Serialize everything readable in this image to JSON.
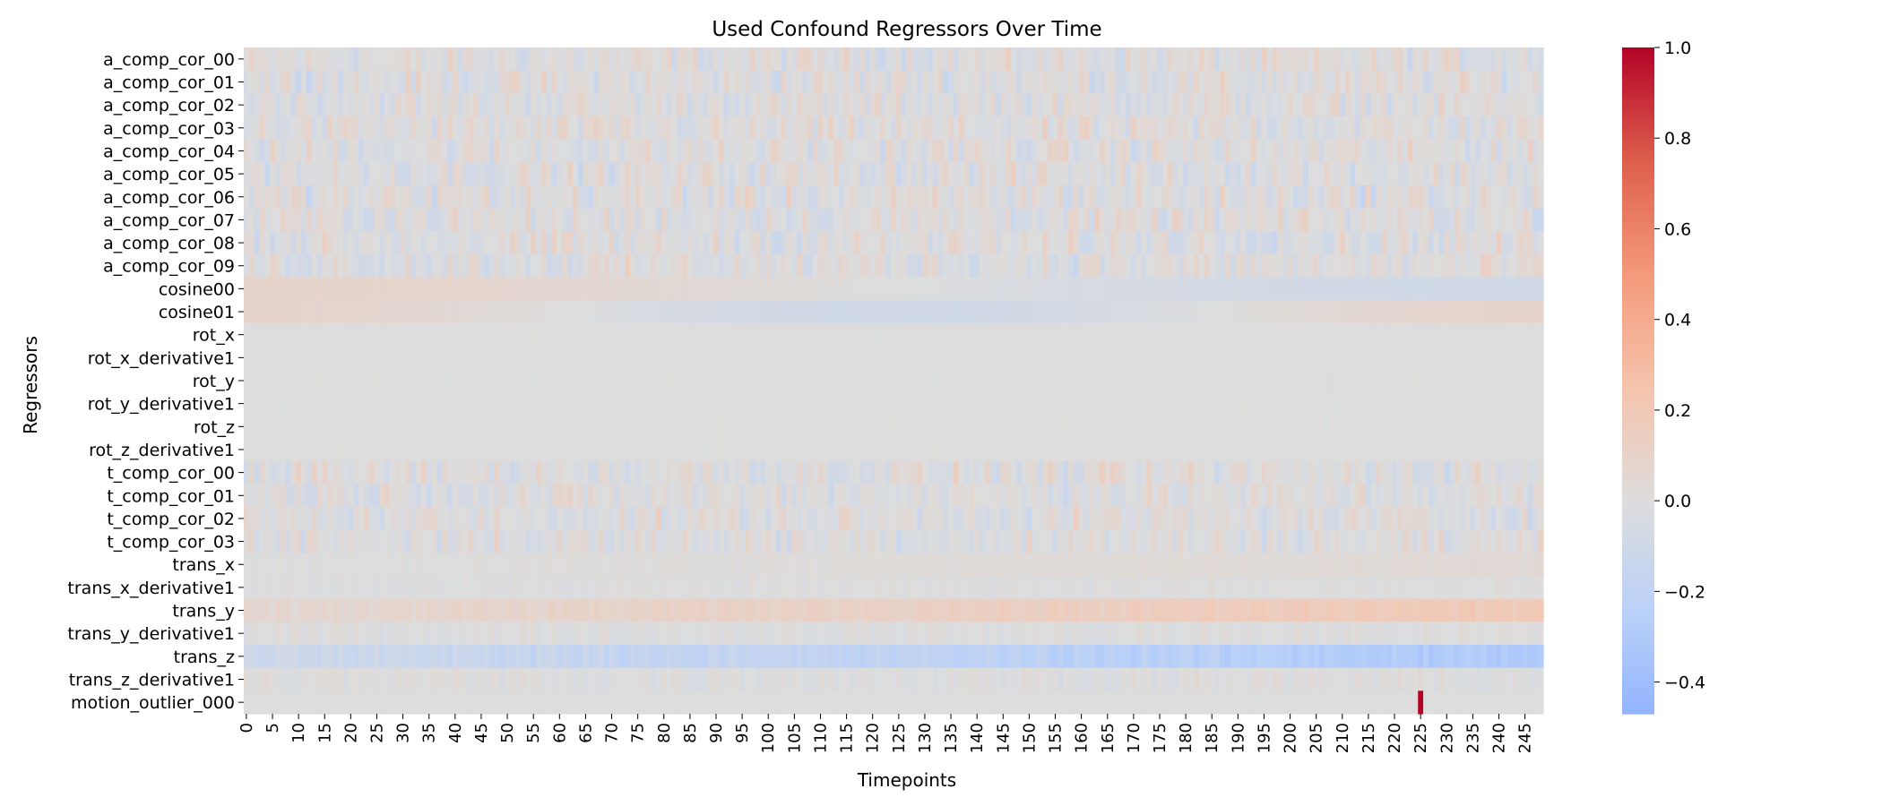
{
  "chart_data": {
    "type": "heatmap",
    "title": "Used Confound Regressors Over Time",
    "xlabel": "Timepoints",
    "ylabel": "Regressors",
    "n_timepoints": 249,
    "x_tick_step": 5,
    "x_tick_labels": [
      "0",
      "5",
      "10",
      "15",
      "20",
      "25",
      "30",
      "35",
      "40",
      "45",
      "50",
      "55",
      "60",
      "65",
      "70",
      "75",
      "80",
      "85",
      "90",
      "95",
      "100",
      "105",
      "110",
      "115",
      "120",
      "125",
      "130",
      "135",
      "140",
      "145",
      "150",
      "155",
      "160",
      "165",
      "170",
      "175",
      "180",
      "185",
      "190",
      "195",
      "200",
      "205",
      "210",
      "215",
      "220",
      "225",
      "230",
      "235",
      "240",
      "245"
    ],
    "regressors": [
      "a_comp_cor_00",
      "a_comp_cor_01",
      "a_comp_cor_02",
      "a_comp_cor_03",
      "a_comp_cor_04",
      "a_comp_cor_05",
      "a_comp_cor_06",
      "a_comp_cor_07",
      "a_comp_cor_08",
      "a_comp_cor_09",
      "cosine00",
      "cosine01",
      "rot_x",
      "rot_x_derivative1",
      "rot_y",
      "rot_y_derivative1",
      "rot_z",
      "rot_z_derivative1",
      "t_comp_cor_00",
      "t_comp_cor_01",
      "t_comp_cor_02",
      "t_comp_cor_03",
      "trans_x",
      "trans_x_derivative1",
      "trans_y",
      "trans_y_derivative1",
      "trans_z",
      "trans_z_derivative1",
      "motion_outlier_000"
    ],
    "colormap": "coolwarm",
    "colorbar": {
      "vmin": -0.47,
      "vmax": 1.0,
      "center": 0.0,
      "ticks": [
        1.0,
        0.8,
        0.6,
        0.4,
        0.2,
        0.0,
        -0.2,
        -0.4
      ],
      "tick_labels": [
        "1.0",
        "0.8",
        "0.6",
        "0.4",
        "0.2",
        "0.0",
        "−0.2",
        "−0.4"
      ]
    },
    "row_patterns": {
      "a_comp_cor_00": {
        "kind": "noise",
        "amp": 0.1
      },
      "a_comp_cor_01": {
        "kind": "noise",
        "amp": 0.1
      },
      "a_comp_cor_02": {
        "kind": "noise",
        "amp": 0.09
      },
      "a_comp_cor_03": {
        "kind": "noise",
        "amp": 0.1
      },
      "a_comp_cor_04": {
        "kind": "noise",
        "amp": 0.1
      },
      "a_comp_cor_05": {
        "kind": "noise",
        "amp": 0.1
      },
      "a_comp_cor_06": {
        "kind": "noise",
        "amp": 0.11
      },
      "a_comp_cor_07": {
        "kind": "noise",
        "amp": 0.1
      },
      "a_comp_cor_08": {
        "kind": "noise",
        "amp": 0.1
      },
      "a_comp_cor_09": {
        "kind": "noise",
        "amp": 0.1
      },
      "cosine00": {
        "kind": "cosine",
        "k": 1,
        "amp": 0.09
      },
      "cosine01": {
        "kind": "cosine",
        "k": 2,
        "amp": 0.09
      },
      "rot_x": {
        "kind": "noise",
        "amp": 0.004
      },
      "rot_x_derivative1": {
        "kind": "noise",
        "amp": 0.003
      },
      "rot_y": {
        "kind": "noise",
        "amp": 0.004
      },
      "rot_y_derivative1": {
        "kind": "noise",
        "amp": 0.003
      },
      "rot_z": {
        "kind": "noise",
        "amp": 0.004
      },
      "rot_z_derivative1": {
        "kind": "noise",
        "amp": 0.003
      },
      "t_comp_cor_00": {
        "kind": "noise",
        "amp": 0.1
      },
      "t_comp_cor_01": {
        "kind": "noise",
        "amp": 0.09
      },
      "t_comp_cor_02": {
        "kind": "noise",
        "amp": 0.09
      },
      "t_comp_cor_03": {
        "kind": "noise",
        "amp": 0.09
      },
      "trans_x": {
        "kind": "trend",
        "start": 0.0,
        "end": 0.04,
        "amp": 0.01
      },
      "trans_x_derivative1": {
        "kind": "noise",
        "amp": 0.02
      },
      "trans_y": {
        "kind": "trend",
        "start": 0.06,
        "end": 0.2,
        "amp": 0.03
      },
      "trans_y_derivative1": {
        "kind": "noise",
        "amp": 0.03
      },
      "trans_z": {
        "kind": "trend",
        "start": -0.1,
        "end": -0.3,
        "amp": 0.04
      },
      "trans_z_derivative1": {
        "kind": "noise",
        "amp": 0.04
      },
      "motion_outlier_000": {
        "kind": "spike",
        "at": 225,
        "value": 1.0
      }
    }
  }
}
